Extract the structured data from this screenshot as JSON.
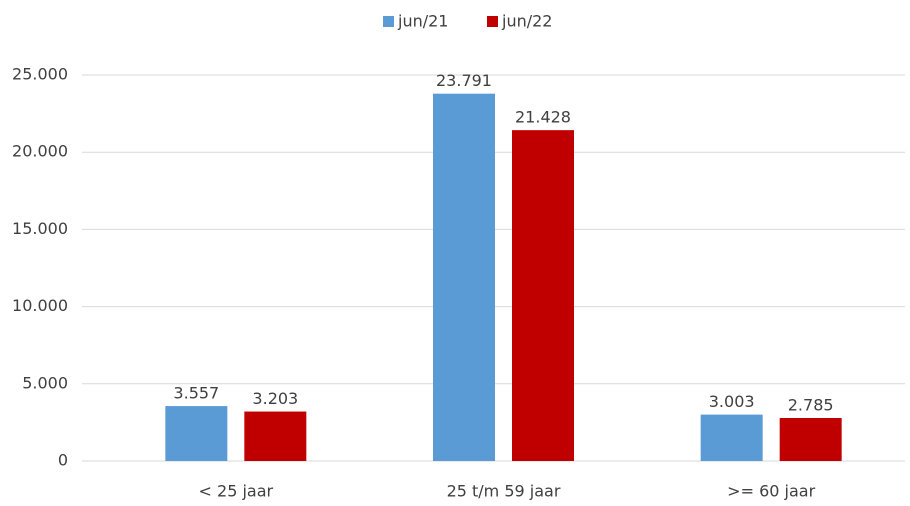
{
  "chart_data": {
    "type": "bar",
    "categories": [
      "< 25 jaar",
      "25 t/m 59 jaar",
      ">= 60 jaar"
    ],
    "series": [
      {
        "name": "jun/21",
        "color": "#5b9bd5",
        "values": [
          3557,
          23791,
          3003
        ],
        "value_labels": [
          "3.557",
          "23.791",
          "3.003"
        ]
      },
      {
        "name": "jun/22",
        "color": "#c00000",
        "values": [
          3203,
          21428,
          2785
        ],
        "value_labels": [
          "3.203",
          "21.428",
          "2.785"
        ]
      }
    ],
    "ylim": [
      0,
      25000
    ],
    "yticks": [
      0,
      {
        "value": 5000,
        "label": "5.000"
      },
      {
        "value": 10000,
        "label": "10.000"
      },
      {
        "value": 15000,
        "label": "15.000"
      },
      {
        "value": 20000,
        "label": "20.000"
      },
      {
        "value": 25000,
        "label": "25.000"
      }
    ],
    "grid": true,
    "legend": "top"
  }
}
